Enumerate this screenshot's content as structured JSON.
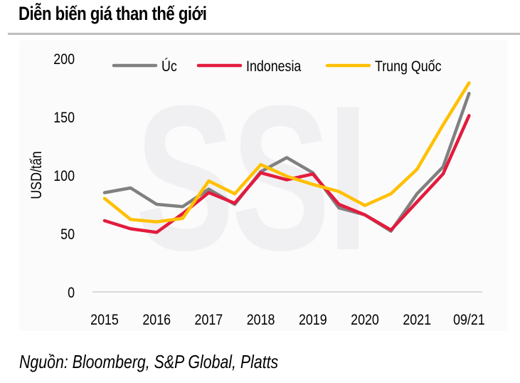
{
  "title": "Diễn biến giá than thế giới",
  "source": "Nguồn: Bloomberg, S&P Global, Platts",
  "watermark": "SSI",
  "colors": {
    "Úc": "#808080",
    "Indonesia": "#e31b3d",
    "Trung Quốc": "#ffc000",
    "axis": "#d9d9d9",
    "watermark": "#f0f0f2"
  },
  "chart_data": {
    "type": "line",
    "title": "Diễn biến giá than thế giới",
    "xlabel": "",
    "ylabel": "USD/tấn",
    "ylim": [
      0,
      200
    ],
    "yticks": [
      0,
      50,
      100,
      150,
      200
    ],
    "xtick_labels": [
      "2015",
      "2016",
      "2017",
      "2018",
      "2019",
      "2020",
      "2021",
      "09/21"
    ],
    "x": [
      "2015 H1",
      "2015 H2",
      "2016 H1",
      "2016 H2",
      "2017 H1",
      "2017 H2",
      "2018 H1",
      "2018 H2",
      "2019 H1",
      "2019 H2",
      "2020 H1",
      "2020 H2",
      "2021 H1",
      "2021 H2",
      "09/21"
    ],
    "grid": false,
    "legend_position": "top",
    "series": [
      {
        "name": "Úc",
        "color": "#808080",
        "values": [
          85,
          89,
          75,
          73,
          88,
          75,
          103,
          115,
          102,
          72,
          66,
          52,
          84,
          107,
          170
        ]
      },
      {
        "name": "Indonesia",
        "color": "#e31b3d",
        "values": [
          61,
          54,
          51,
          67,
          85,
          76,
          102,
          96,
          101,
          75,
          66,
          53,
          77,
          101,
          151
        ]
      },
      {
        "name": "Trung Quốc",
        "color": "#ffc000",
        "values": [
          80,
          62,
          60,
          63,
          95,
          84,
          109,
          99,
          92,
          86,
          74,
          84,
          105,
          143,
          179
        ]
      }
    ]
  }
}
